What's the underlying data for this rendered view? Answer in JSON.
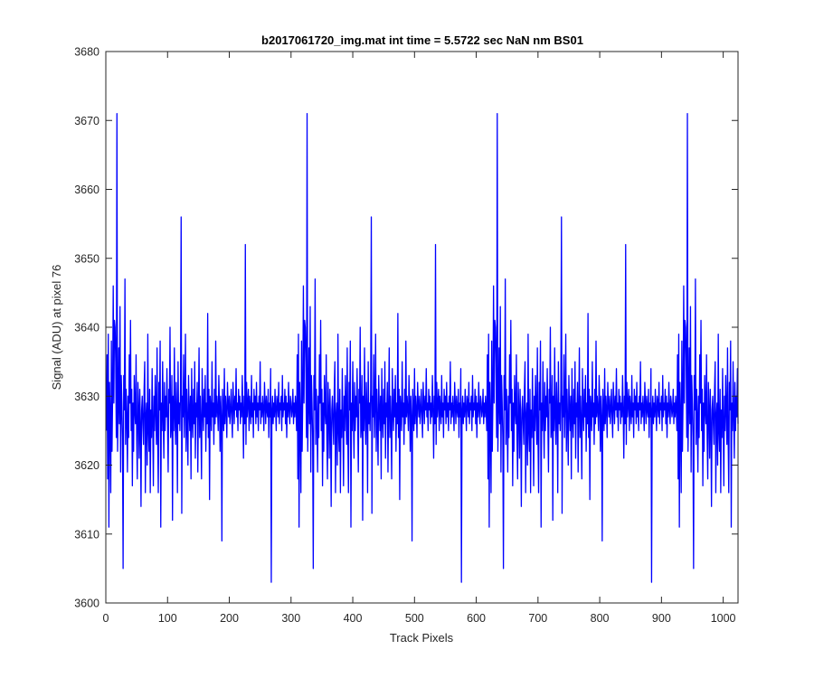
{
  "chart_data": {
    "type": "line",
    "title": "b2017061720_img.mat int time = 5.5722 sec  NaN nm BS01",
    "xlabel": "Track Pixels",
    "ylabel": "Signal (ADU) at pixel 76",
    "xlim": [
      0,
      1024
    ],
    "ylim": [
      3600,
      3680
    ],
    "x_ticks": [
      0,
      100,
      200,
      300,
      400,
      500,
      600,
      700,
      800,
      900,
      1000
    ],
    "y_ticks": [
      3600,
      3610,
      3620,
      3630,
      3640,
      3650,
      3660,
      3670,
      3680
    ],
    "grid": false,
    "series": [
      {
        "color": "#0000ff",
        "x_start": 1,
        "x_step": 1,
        "y": [
          3625,
          3636,
          3618,
          3639,
          3611,
          3632,
          3627,
          3616,
          3638,
          3622,
          3630,
          3646,
          3629,
          3641,
          3640,
          3635,
          3624,
          3671,
          3622,
          3628,
          3637,
          3626,
          3643,
          3619,
          3633,
          3629,
          3624,
          3605,
          3633,
          3628,
          3647,
          3623,
          3631,
          3627,
          3619,
          3630,
          3624,
          3636,
          3629,
          3641,
          3625,
          3631,
          3617,
          3629,
          3622,
          3633,
          3628,
          3626,
          3636,
          3624,
          3618,
          3632,
          3628,
          3621,
          3631,
          3626,
          3614,
          3628,
          3630,
          3626,
          3623,
          3631,
          3635,
          3616,
          3627,
          3629,
          3620,
          3639,
          3625,
          3622,
          3631,
          3616,
          3628,
          3624,
          3634,
          3626,
          3617,
          3630,
          3625,
          3633,
          3628,
          3623,
          3637,
          3624,
          3616,
          3632,
          3628,
          3638,
          3611,
          3629,
          3625,
          3635,
          3627,
          3621,
          3632,
          3625,
          3630,
          3627,
          3634,
          3626,
          3619,
          3631,
          3629,
          3640,
          3624,
          3626,
          3633,
          3612,
          3630,
          3625,
          3637,
          3627,
          3623,
          3632,
          3628,
          3616,
          3635,
          3626,
          3629,
          3625,
          3631,
          3656,
          3613,
          3630,
          3627,
          3636,
          3624,
          3629,
          3639,
          3622,
          3631,
          3626,
          3620,
          3633,
          3628,
          3625,
          3630,
          3618,
          3634,
          3627,
          3624,
          3631,
          3626,
          3635,
          3621,
          3629,
          3627,
          3632,
          3619,
          3628,
          3637,
          3624,
          3630,
          3626,
          3618,
          3634,
          3628,
          3625,
          3631,
          3627,
          3633,
          3622,
          3629,
          3626,
          3642,
          3624,
          3631,
          3615,
          3630,
          3628,
          3625,
          3635,
          3627,
          3629,
          3623,
          3631,
          3626,
          3638,
          3627,
          3630,
          3628,
          3625,
          3633,
          3629,
          3622,
          3630,
          3627,
          3609,
          3631,
          3628,
          3625,
          3634,
          3626,
          3630,
          3628,
          3624,
          3632,
          3629,
          3627,
          3630,
          3626,
          3628,
          3631,
          3627,
          3624,
          3632,
          3629,
          3626,
          3630,
          3628,
          3634,
          3627,
          3629,
          3625,
          3631,
          3628,
          3630,
          3626,
          3629,
          3627,
          3633,
          3628,
          3621,
          3630,
          3626,
          3652,
          3623,
          3632,
          3627,
          3629,
          3631,
          3625,
          3630,
          3628,
          3626,
          3633,
          3627,
          3629,
          3624,
          3631,
          3628,
          3630,
          3626,
          3632,
          3627,
          3629,
          3625,
          3630,
          3628,
          3635,
          3626,
          3629,
          3627,
          3630,
          3628,
          3625,
          3632,
          3629,
          3626,
          3630,
          3628,
          3627,
          3631,
          3624,
          3629,
          3627,
          3634,
          3603,
          3628,
          3630,
          3626,
          3629,
          3627,
          3631,
          3628,
          3625,
          3630,
          3629,
          3627,
          3632,
          3626,
          3629,
          3628,
          3630,
          3625,
          3633,
          3627,
          3629,
          3628,
          3631,
          3626,
          3630,
          3624,
          3629,
          3627,
          3632,
          3628,
          3626,
          3630,
          3629,
          3627,
          3628,
          3631,
          3626,
          3629,
          3627,
          3630,
          3628
        ],
        "y_repeat_to_length": 1024
      }
    ]
  }
}
